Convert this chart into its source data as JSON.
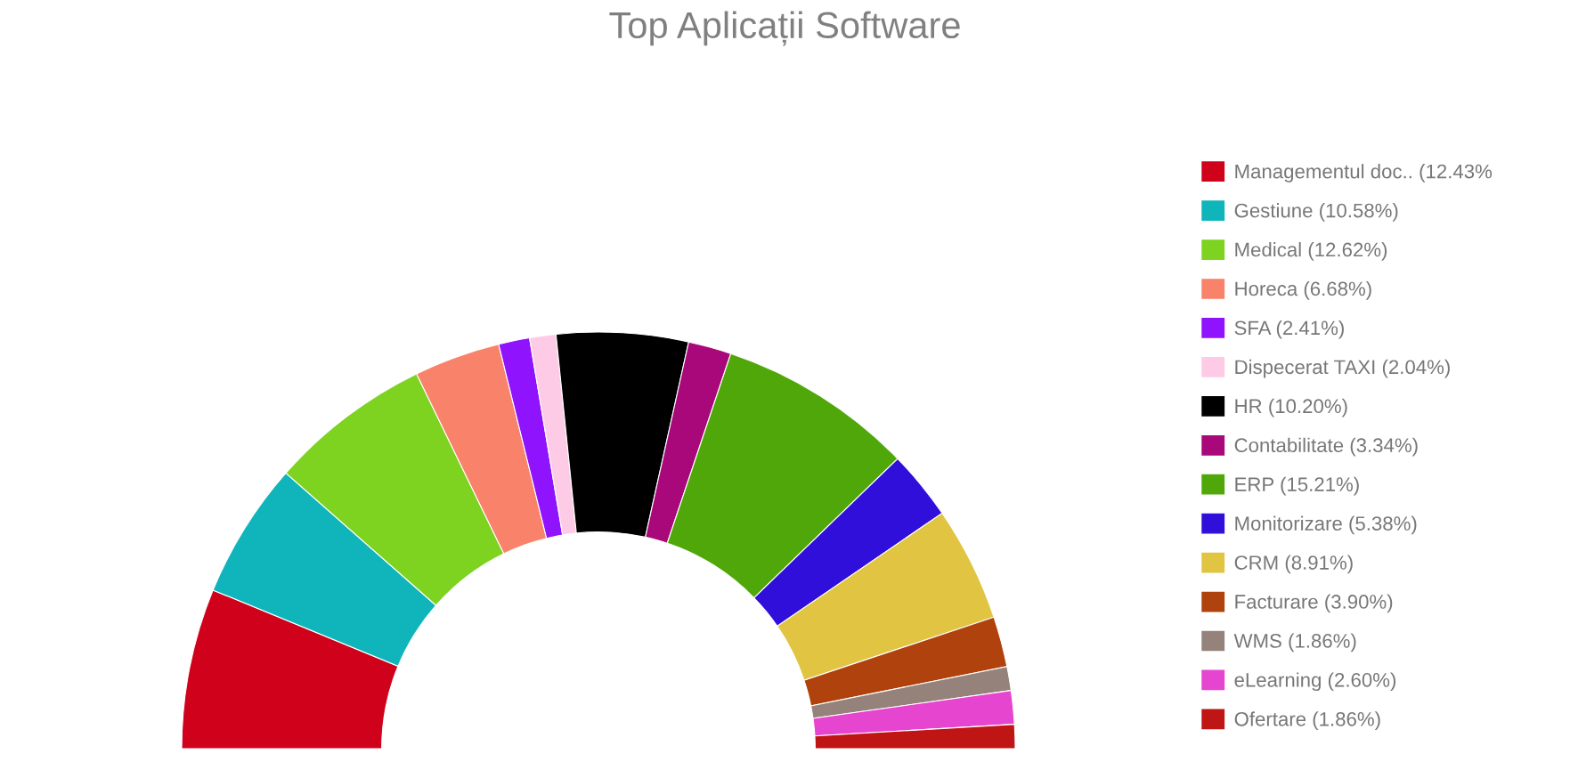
{
  "chart_data": {
    "type": "donut",
    "title": "Top Aplicații Software",
    "categories": [
      "Managementul doc.. (12.43%",
      "Gestiune (10.58%)",
      "Medical (12.62%)",
      "Horeca (6.68%)",
      "SFA (2.41%)",
      "Dispecerat TAXI (2.04%)",
      "HR (10.20%)",
      "Contabilitate (3.34%)",
      "ERP (15.21%)",
      "Monitorizare (5.38%)",
      "CRM (8.91%)",
      "Facturare (3.90%)",
      "WMS (1.86%)",
      "eLearning (2.60%)",
      "Ofertare (1.86%)"
    ],
    "values": [
      12.43,
      10.58,
      12.62,
      6.68,
      2.41,
      2.04,
      10.2,
      3.34,
      15.21,
      5.38,
      8.91,
      3.9,
      1.86,
      2.6,
      1.86
    ],
    "colors": [
      "#d0021b",
      "#0fb5ba",
      "#7ed321",
      "#f8836a",
      "#9013fe",
      "#fdcbe6",
      "#000000",
      "#a8087a",
      "#50a70a",
      "#2f0fd9",
      "#e1c542",
      "#b0420d",
      "#95827b",
      "#e645cf",
      "#bf1515"
    ],
    "legend": "right"
  }
}
